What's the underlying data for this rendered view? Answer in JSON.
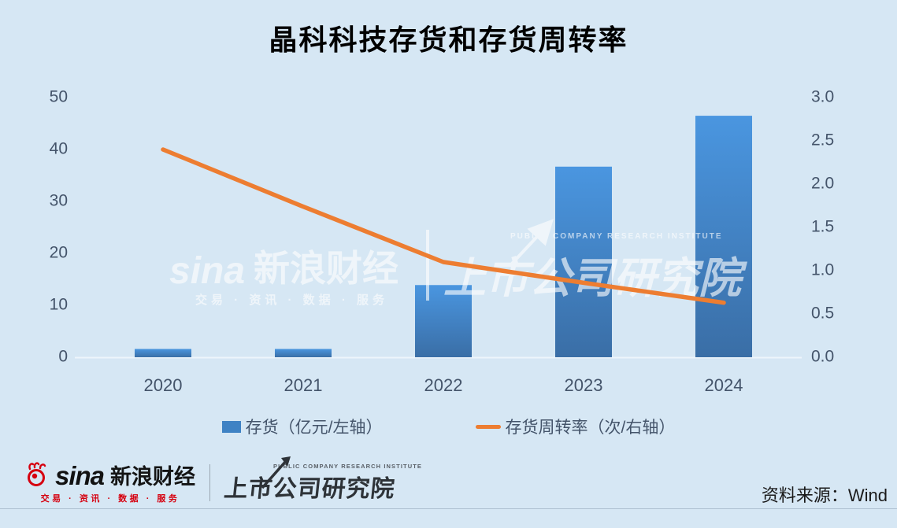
{
  "title": "晶科科技存货和存货周转率",
  "chart_data": {
    "type": "bar+line combo",
    "categories": [
      "2020",
      "2021",
      "2022",
      "2023",
      "2024"
    ],
    "series": [
      {
        "name": "存货（亿元/左轴）",
        "type": "bar",
        "axis": "left",
        "values": [
          1.6,
          1.6,
          13.9,
          36.7,
          46.5
        ],
        "color_top": "#4a96e0",
        "color_bottom": "#3a6ea6"
      },
      {
        "name": "存货周转率（次/右轴）",
        "type": "line",
        "axis": "right",
        "values": [
          2.4,
          1.74,
          1.1,
          0.86,
          0.63
        ],
        "color": "#ed7d31"
      }
    ],
    "left_axis": {
      "ticks": [
        "50",
        "40",
        "30",
        "20",
        "10",
        "0"
      ],
      "min": 0,
      "max": 50
    },
    "right_axis": {
      "ticks": [
        "3.0",
        "2.5",
        "2.0",
        "1.5",
        "1.0",
        "0.5",
        "0.0"
      ],
      "min": 0,
      "max": 3.0
    },
    "grid": "baseline only",
    "legend_position": "bottom",
    "title": "晶科科技存货和存货周转率"
  },
  "legend": {
    "bar_label": "存货（亿元/左轴）",
    "line_label": "存货周转率（次/右轴）"
  },
  "watermark": {
    "sina_word": "sina",
    "brand": "新浪财经",
    "tagline": "交易 · 资讯 · 数据 · 服务",
    "institute": "上市公司研究院",
    "institute_en": "PUBLIC COMPANY RESEARCH INSTITUTE"
  },
  "footer": {
    "sina_word": "sina",
    "sina_brand": "新浪财经",
    "sina_tagline": "交易 · 资讯 · 数据 · 服务",
    "institute_en": "PUBLIC COMPANY RESEARCH INSTITUTE",
    "institute_cn": "上市公司研究院",
    "source": "资料来源：Wind"
  },
  "colors": {
    "background": "#d6e7f4",
    "bar_top": "#4a96e0",
    "bar_bottom": "#3a6ea6",
    "line": "#ed7d31",
    "axis_text": "#44546a",
    "title_text": "#000000",
    "source_text": "#1a1a1a",
    "sina_red": "#d6000f"
  }
}
